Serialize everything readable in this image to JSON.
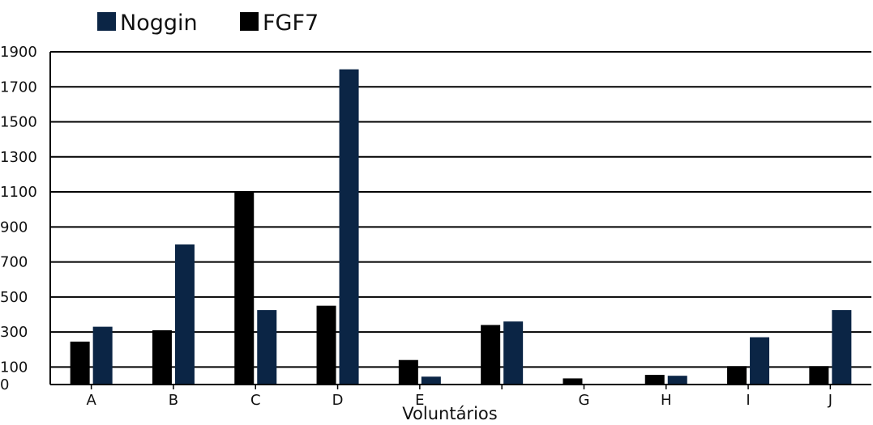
{
  "chart_data": {
    "type": "bar",
    "categories": [
      "A",
      "B",
      "C",
      "D",
      "E",
      "",
      "G",
      "H",
      "I",
      "J"
    ],
    "series": [
      {
        "name": "FGF7",
        "color": "#000000",
        "values": [
          245,
          310,
          1100,
          450,
          140,
          340,
          35,
          55,
          105,
          105
        ]
      },
      {
        "name": "Noggin",
        "color": "#0b2545",
        "values": [
          330,
          800,
          425,
          1800,
          45,
          360,
          0,
          50,
          270,
          425
        ]
      }
    ],
    "legend": {
      "position": "top-left",
      "items": [
        {
          "name": "Noggin",
          "color": "#0b2545"
        },
        {
          "name": "FGF7",
          "color": "#000000"
        }
      ]
    },
    "xlabel": "Voluntários",
    "ylabel": "",
    "ylim": [
      0,
      1900
    ],
    "yticks": [
      0,
      100,
      300,
      500,
      700,
      900,
      1100,
      1300,
      1500,
      1700,
      1900
    ],
    "grid": true
  }
}
